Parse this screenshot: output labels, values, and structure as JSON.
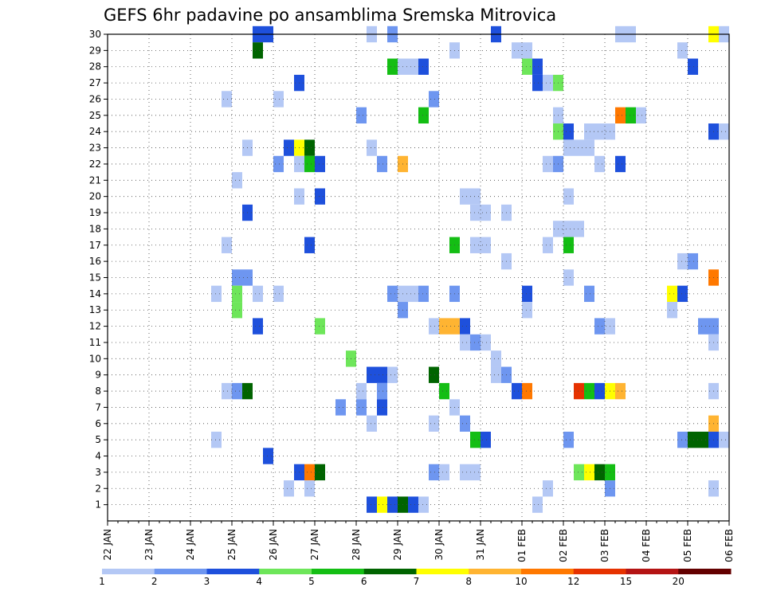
{
  "chart_data": {
    "type": "heatmap",
    "title": "GEFS 6hr padavine po ansamblima Sremska Mitrovica",
    "x_ticks": [
      "22 JAN",
      "23 JAN",
      "24 JAN",
      "25 JAN",
      "26 JAN",
      "27 JAN",
      "28 JAN",
      "29 JAN",
      "30 JAN",
      "31 JAN",
      "01 FEB",
      "02 FEB",
      "03 FEB",
      "04 FEB",
      "05 FEB",
      "06 FEB"
    ],
    "y_ticks": [
      1,
      2,
      3,
      4,
      5,
      6,
      7,
      8,
      9,
      10,
      11,
      12,
      13,
      14,
      15,
      16,
      17,
      18,
      19,
      20,
      21,
      22,
      23,
      24,
      25,
      26,
      27,
      28,
      29,
      30
    ],
    "x_range_days": [
      0,
      15
    ],
    "step_hours": 6,
    "y_range": [
      0,
      30
    ],
    "grid": true,
    "legend_placement": "bottom",
    "legend": {
      "labels": [
        "1",
        "2",
        "3",
        "4",
        "5",
        "6",
        "7",
        "8",
        "10",
        "12",
        "15",
        "20"
      ],
      "colors": [
        "#b4c8f5",
        "#6e96f0",
        "#1e50dc",
        "#6ee65a",
        "#14be14",
        "#006400",
        "#ffff00",
        "#ffb432",
        "#ff7800",
        "#e63200",
        "#b41414",
        "#640000"
      ]
    },
    "cells": [
      {
        "x": 14.5,
        "y": 30,
        "v": "7"
      },
      {
        "x": 14.75,
        "y": 30,
        "v": "1"
      },
      {
        "x": 12.25,
        "y": 30,
        "v": "1"
      },
      {
        "x": 12.5,
        "y": 30,
        "v": "1"
      },
      {
        "x": 9.25,
        "y": 30,
        "v": "3"
      },
      {
        "x": 6.25,
        "y": 30,
        "v": "1"
      },
      {
        "x": 6.75,
        "y": 30,
        "v": "2"
      },
      {
        "x": 3.5,
        "y": 30,
        "v": "3"
      },
      {
        "x": 3.75,
        "y": 30,
        "v": "3"
      },
      {
        "x": 3.5,
        "y": 29,
        "v": "6"
      },
      {
        "x": 8.25,
        "y": 29,
        "v": "1"
      },
      {
        "x": 9.75,
        "y": 29,
        "v": "1"
      },
      {
        "x": 10,
        "y": 29,
        "v": "1"
      },
      {
        "x": 13.75,
        "y": 29,
        "v": "1"
      },
      {
        "x": 6.75,
        "y": 28,
        "v": "5"
      },
      {
        "x": 7,
        "y": 28,
        "v": "1"
      },
      {
        "x": 7.25,
        "y": 28,
        "v": "1"
      },
      {
        "x": 7.5,
        "y": 28,
        "v": "3"
      },
      {
        "x": 10,
        "y": 28,
        "v": "4"
      },
      {
        "x": 10.25,
        "y": 28,
        "v": "3"
      },
      {
        "x": 14,
        "y": 28,
        "v": "3"
      },
      {
        "x": 4.5,
        "y": 27,
        "v": "3"
      },
      {
        "x": 10.25,
        "y": 27,
        "v": "3"
      },
      {
        "x": 10.5,
        "y": 27,
        "v": "1"
      },
      {
        "x": 10.75,
        "y": 27,
        "v": "4"
      },
      {
        "x": 2.75,
        "y": 26,
        "v": "1"
      },
      {
        "x": 4,
        "y": 26,
        "v": "1"
      },
      {
        "x": 7.75,
        "y": 26,
        "v": "2"
      },
      {
        "x": 6,
        "y": 25,
        "v": "2"
      },
      {
        "x": 7.5,
        "y": 25,
        "v": "5"
      },
      {
        "x": 10.75,
        "y": 25,
        "v": "1"
      },
      {
        "x": 12.25,
        "y": 25,
        "v": "10"
      },
      {
        "x": 12.5,
        "y": 25,
        "v": "5"
      },
      {
        "x": 12.75,
        "y": 25,
        "v": "1"
      },
      {
        "x": 15,
        "y": 25,
        "v": "2"
      },
      {
        "x": 10.75,
        "y": 24,
        "v": "4"
      },
      {
        "x": 11,
        "y": 24,
        "v": "3"
      },
      {
        "x": 11.5,
        "y": 24,
        "v": "1"
      },
      {
        "x": 11.75,
        "y": 24,
        "v": "1"
      },
      {
        "x": 12,
        "y": 24,
        "v": "1"
      },
      {
        "x": 14.5,
        "y": 24,
        "v": "3"
      },
      {
        "x": 14.75,
        "y": 24,
        "v": "1"
      },
      {
        "x": 3.25,
        "y": 23,
        "v": "1"
      },
      {
        "x": 4.25,
        "y": 23,
        "v": "3"
      },
      {
        "x": 4.5,
        "y": 23,
        "v": "7"
      },
      {
        "x": 4.75,
        "y": 23,
        "v": "6"
      },
      {
        "x": 6.25,
        "y": 23,
        "v": "1"
      },
      {
        "x": 11,
        "y": 23,
        "v": "1"
      },
      {
        "x": 11.25,
        "y": 23,
        "v": "1"
      },
      {
        "x": 11.5,
        "y": 23,
        "v": "1"
      },
      {
        "x": 4,
        "y": 22,
        "v": "2"
      },
      {
        "x": 4.5,
        "y": 22,
        "v": "1"
      },
      {
        "x": 4.75,
        "y": 22,
        "v": "5"
      },
      {
        "x": 5,
        "y": 22,
        "v": "3"
      },
      {
        "x": 6.5,
        "y": 22,
        "v": "2"
      },
      {
        "x": 7,
        "y": 22,
        "v": "8"
      },
      {
        "x": 10.5,
        "y": 22,
        "v": "1"
      },
      {
        "x": 10.75,
        "y": 22,
        "v": "2"
      },
      {
        "x": 11.75,
        "y": 22,
        "v": "1"
      },
      {
        "x": 12.25,
        "y": 22,
        "v": "3"
      },
      {
        "x": 15,
        "y": 22,
        "v": "1"
      },
      {
        "x": 3,
        "y": 21,
        "v": "1"
      },
      {
        "x": 4.5,
        "y": 20,
        "v": "1"
      },
      {
        "x": 5,
        "y": 20,
        "v": "3"
      },
      {
        "x": 8.5,
        "y": 20,
        "v": "1"
      },
      {
        "x": 8.75,
        "y": 20,
        "v": "1"
      },
      {
        "x": 11,
        "y": 20,
        "v": "1"
      },
      {
        "x": 3.25,
        "y": 19,
        "v": "3"
      },
      {
        "x": 8.75,
        "y": 19,
        "v": "1"
      },
      {
        "x": 9,
        "y": 19,
        "v": "1"
      },
      {
        "x": 9.5,
        "y": 19,
        "v": "1"
      },
      {
        "x": 10.75,
        "y": 18,
        "v": "1"
      },
      {
        "x": 11,
        "y": 18,
        "v": "1"
      },
      {
        "x": 11.25,
        "y": 18,
        "v": "1"
      },
      {
        "x": 2.75,
        "y": 17,
        "v": "1"
      },
      {
        "x": 4.75,
        "y": 17,
        "v": "3"
      },
      {
        "x": 8.25,
        "y": 17,
        "v": "5"
      },
      {
        "x": 8.75,
        "y": 17,
        "v": "1"
      },
      {
        "x": 9,
        "y": 17,
        "v": "1"
      },
      {
        "x": 10.5,
        "y": 17,
        "v": "1"
      },
      {
        "x": 11,
        "y": 17,
        "v": "5"
      },
      {
        "x": 9.5,
        "y": 16,
        "v": "1"
      },
      {
        "x": 13.75,
        "y": 16,
        "v": "1"
      },
      {
        "x": 14,
        "y": 16,
        "v": "2"
      },
      {
        "x": 3,
        "y": 15,
        "v": "2"
      },
      {
        "x": 3.25,
        "y": 15,
        "v": "2"
      },
      {
        "x": 11,
        "y": 15,
        "v": "1"
      },
      {
        "x": 14.5,
        "y": 15,
        "v": "10"
      },
      {
        "x": 2.5,
        "y": 14,
        "v": "1"
      },
      {
        "x": 3,
        "y": 14,
        "v": "4"
      },
      {
        "x": 3.5,
        "y": 14,
        "v": "1"
      },
      {
        "x": 4,
        "y": 14,
        "v": "1"
      },
      {
        "x": 6.75,
        "y": 14,
        "v": "2"
      },
      {
        "x": 7,
        "y": 14,
        "v": "1"
      },
      {
        "x": 7.25,
        "y": 14,
        "v": "1"
      },
      {
        "x": 7.5,
        "y": 14,
        "v": "2"
      },
      {
        "x": 8.25,
        "y": 14,
        "v": "2"
      },
      {
        "x": 10,
        "y": 14,
        "v": "3"
      },
      {
        "x": 11.5,
        "y": 14,
        "v": "2"
      },
      {
        "x": 13.5,
        "y": 14,
        "v": "7"
      },
      {
        "x": 13.75,
        "y": 14,
        "v": "3"
      },
      {
        "x": 3,
        "y": 13,
        "v": "4"
      },
      {
        "x": 7,
        "y": 13,
        "v": "2"
      },
      {
        "x": 10,
        "y": 13,
        "v": "1"
      },
      {
        "x": 13.5,
        "y": 13,
        "v": "1"
      },
      {
        "x": 3.5,
        "y": 12,
        "v": "3"
      },
      {
        "x": 5,
        "y": 12,
        "v": "4"
      },
      {
        "x": 7.75,
        "y": 12,
        "v": "1"
      },
      {
        "x": 8,
        "y": 12,
        "v": "8"
      },
      {
        "x": 8.25,
        "y": 12,
        "v": "8"
      },
      {
        "x": 8.5,
        "y": 12,
        "v": "3"
      },
      {
        "x": 11.75,
        "y": 12,
        "v": "2"
      },
      {
        "x": 12,
        "y": 12,
        "v": "1"
      },
      {
        "x": 14.25,
        "y": 12,
        "v": "2"
      },
      {
        "x": 14.5,
        "y": 12,
        "v": "2"
      },
      {
        "x": 8.5,
        "y": 11,
        "v": "1"
      },
      {
        "x": 8.75,
        "y": 11,
        "v": "2"
      },
      {
        "x": 9,
        "y": 11,
        "v": "1"
      },
      {
        "x": 14.5,
        "y": 11,
        "v": "1"
      },
      {
        "x": 15,
        "y": 11,
        "v": "1"
      },
      {
        "x": 5.75,
        "y": 10,
        "v": "4"
      },
      {
        "x": 9.25,
        "y": 10,
        "v": "1"
      },
      {
        "x": 6.25,
        "y": 9,
        "v": "3"
      },
      {
        "x": 6.5,
        "y": 9,
        "v": "3"
      },
      {
        "x": 6.75,
        "y": 9,
        "v": "1"
      },
      {
        "x": 7.75,
        "y": 9,
        "v": "6"
      },
      {
        "x": 9.25,
        "y": 9,
        "v": "1"
      },
      {
        "x": 9.5,
        "y": 9,
        "v": "2"
      },
      {
        "x": 2.75,
        "y": 8,
        "v": "1"
      },
      {
        "x": 3,
        "y": 8,
        "v": "2"
      },
      {
        "x": 3.25,
        "y": 8,
        "v": "6"
      },
      {
        "x": 6,
        "y": 8,
        "v": "1"
      },
      {
        "x": 6.5,
        "y": 8,
        "v": "2"
      },
      {
        "x": 8,
        "y": 8,
        "v": "5"
      },
      {
        "x": 9.75,
        "y": 8,
        "v": "3"
      },
      {
        "x": 10,
        "y": 8,
        "v": "10"
      },
      {
        "x": 11.25,
        "y": 8,
        "v": "12"
      },
      {
        "x": 11.5,
        "y": 8,
        "v": "5"
      },
      {
        "x": 11.75,
        "y": 8,
        "v": "3"
      },
      {
        "x": 12,
        "y": 8,
        "v": "7"
      },
      {
        "x": 12.25,
        "y": 8,
        "v": "8"
      },
      {
        "x": 14.5,
        "y": 8,
        "v": "1"
      },
      {
        "x": 5.5,
        "y": 7,
        "v": "2"
      },
      {
        "x": 6,
        "y": 7,
        "v": "2"
      },
      {
        "x": 6.5,
        "y": 7,
        "v": "3"
      },
      {
        "x": 8.25,
        "y": 7,
        "v": "1"
      },
      {
        "x": 6.25,
        "y": 6,
        "v": "1"
      },
      {
        "x": 7.75,
        "y": 6,
        "v": "1"
      },
      {
        "x": 8.5,
        "y": 6,
        "v": "2"
      },
      {
        "x": 14.5,
        "y": 6,
        "v": "8"
      },
      {
        "x": 2.5,
        "y": 5,
        "v": "1"
      },
      {
        "x": 8.75,
        "y": 5,
        "v": "5"
      },
      {
        "x": 9,
        "y": 5,
        "v": "3"
      },
      {
        "x": 11,
        "y": 5,
        "v": "2"
      },
      {
        "x": 13.75,
        "y": 5,
        "v": "2"
      },
      {
        "x": 14,
        "y": 5,
        "v": "6"
      },
      {
        "x": 14.25,
        "y": 5,
        "v": "6"
      },
      {
        "x": 14.5,
        "y": 5,
        "v": "3"
      },
      {
        "x": 14.75,
        "y": 5,
        "v": "1"
      },
      {
        "x": 15,
        "y": 5,
        "v": "3"
      },
      {
        "x": 3.75,
        "y": 4,
        "v": "3"
      },
      {
        "x": 4.5,
        "y": 3,
        "v": "3"
      },
      {
        "x": 4.75,
        "y": 3,
        "v": "10"
      },
      {
        "x": 5,
        "y": 3,
        "v": "6"
      },
      {
        "x": 7.75,
        "y": 3,
        "v": "2"
      },
      {
        "x": 8,
        "y": 3,
        "v": "1"
      },
      {
        "x": 8.5,
        "y": 3,
        "v": "1"
      },
      {
        "x": 8.75,
        "y": 3,
        "v": "1"
      },
      {
        "x": 11.25,
        "y": 3,
        "v": "4"
      },
      {
        "x": 11.5,
        "y": 3,
        "v": "7"
      },
      {
        "x": 11.75,
        "y": 3,
        "v": "6"
      },
      {
        "x": 12,
        "y": 3,
        "v": "5"
      },
      {
        "x": 4.25,
        "y": 2,
        "v": "1"
      },
      {
        "x": 4.75,
        "y": 2,
        "v": "1"
      },
      {
        "x": 10.5,
        "y": 2,
        "v": "1"
      },
      {
        "x": 12,
        "y": 2,
        "v": "2"
      },
      {
        "x": 14.5,
        "y": 2,
        "v": "1"
      },
      {
        "x": 6.25,
        "y": 1,
        "v": "3"
      },
      {
        "x": 6.5,
        "y": 1,
        "v": "7"
      },
      {
        "x": 6.75,
        "y": 1,
        "v": "3"
      },
      {
        "x": 7,
        "y": 1,
        "v": "6"
      },
      {
        "x": 7.25,
        "y": 1,
        "v": "3"
      },
      {
        "x": 7.5,
        "y": 1,
        "v": "1"
      },
      {
        "x": 10.25,
        "y": 1,
        "v": "1"
      }
    ]
  }
}
